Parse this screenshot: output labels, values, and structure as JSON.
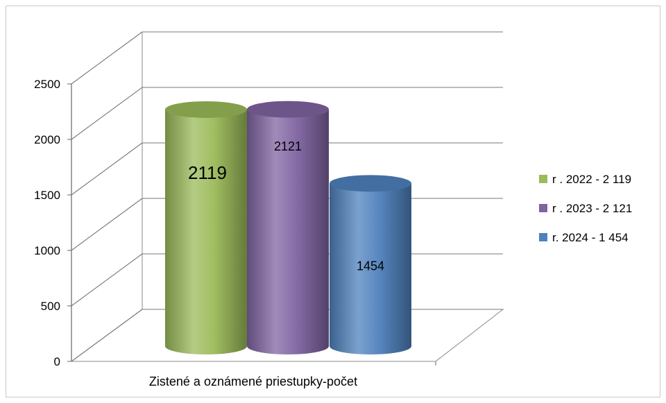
{
  "chart_data": {
    "type": "bar",
    "style": "3d-cylinder",
    "categories": [
      "Zistené a oznámené priestupky-počet"
    ],
    "series": [
      {
        "name": "r . 2022 - 2 119",
        "values": [
          2119
        ],
        "data_label": "2119",
        "color": "#9bbb59"
      },
      {
        "name": "r . 2023 - 2 121",
        "values": [
          2121
        ],
        "data_label": "2121",
        "color": "#8064a2"
      },
      {
        "name": "r. 2024 - 1 454",
        "values": [
          1454
        ],
        "data_label": "1454",
        "color": "#4f81bd"
      }
    ],
    "y_ticks": [
      "0",
      "500",
      "1000",
      "1500",
      "2000",
      "2500"
    ],
    "ylim": [
      0,
      2500
    ],
    "grid": true,
    "legend_position": "right"
  }
}
